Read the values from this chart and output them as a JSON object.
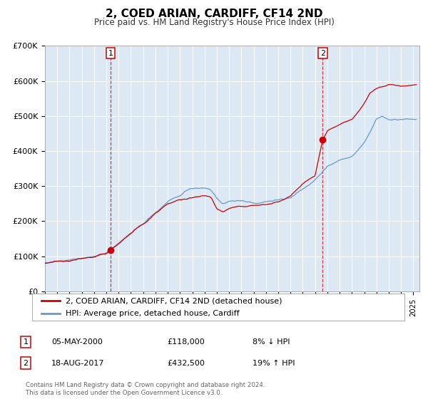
{
  "title": "2, COED ARIAN, CARDIFF, CF14 2ND",
  "subtitle": "Price paid vs. HM Land Registry's House Price Index (HPI)",
  "background_color": "#dce9f5",
  "fig_bg_color": "#ffffff",
  "ylim": [
    0,
    700000
  ],
  "yticks": [
    0,
    100000,
    200000,
    300000,
    400000,
    500000,
    600000,
    700000
  ],
  "ytick_labels": [
    "£0",
    "£100K",
    "£200K",
    "£300K",
    "£400K",
    "£500K",
    "£600K",
    "£700K"
  ],
  "xlim_start": 1995.0,
  "xlim_end": 2025.5,
  "sale1_date": 2000.35,
  "sale1_price": 118000,
  "sale1_label": "1",
  "sale2_date": 2017.62,
  "sale2_price": 432500,
  "sale2_label": "2",
  "red_color": "#cc0000",
  "blue_color": "#6699cc",
  "legend_label_red": "2, COED ARIAN, CARDIFF, CF14 2ND (detached house)",
  "legend_label_blue": "HPI: Average price, detached house, Cardiff",
  "table_row1": [
    "1",
    "05-MAY-2000",
    "£118,000",
    "8% ↓ HPI"
  ],
  "table_row2": [
    "2",
    "18-AUG-2017",
    "£432,500",
    "19% ↑ HPI"
  ],
  "footer": "Contains HM Land Registry data © Crown copyright and database right 2024.\nThis data is licensed under the Open Government Licence v3.0."
}
